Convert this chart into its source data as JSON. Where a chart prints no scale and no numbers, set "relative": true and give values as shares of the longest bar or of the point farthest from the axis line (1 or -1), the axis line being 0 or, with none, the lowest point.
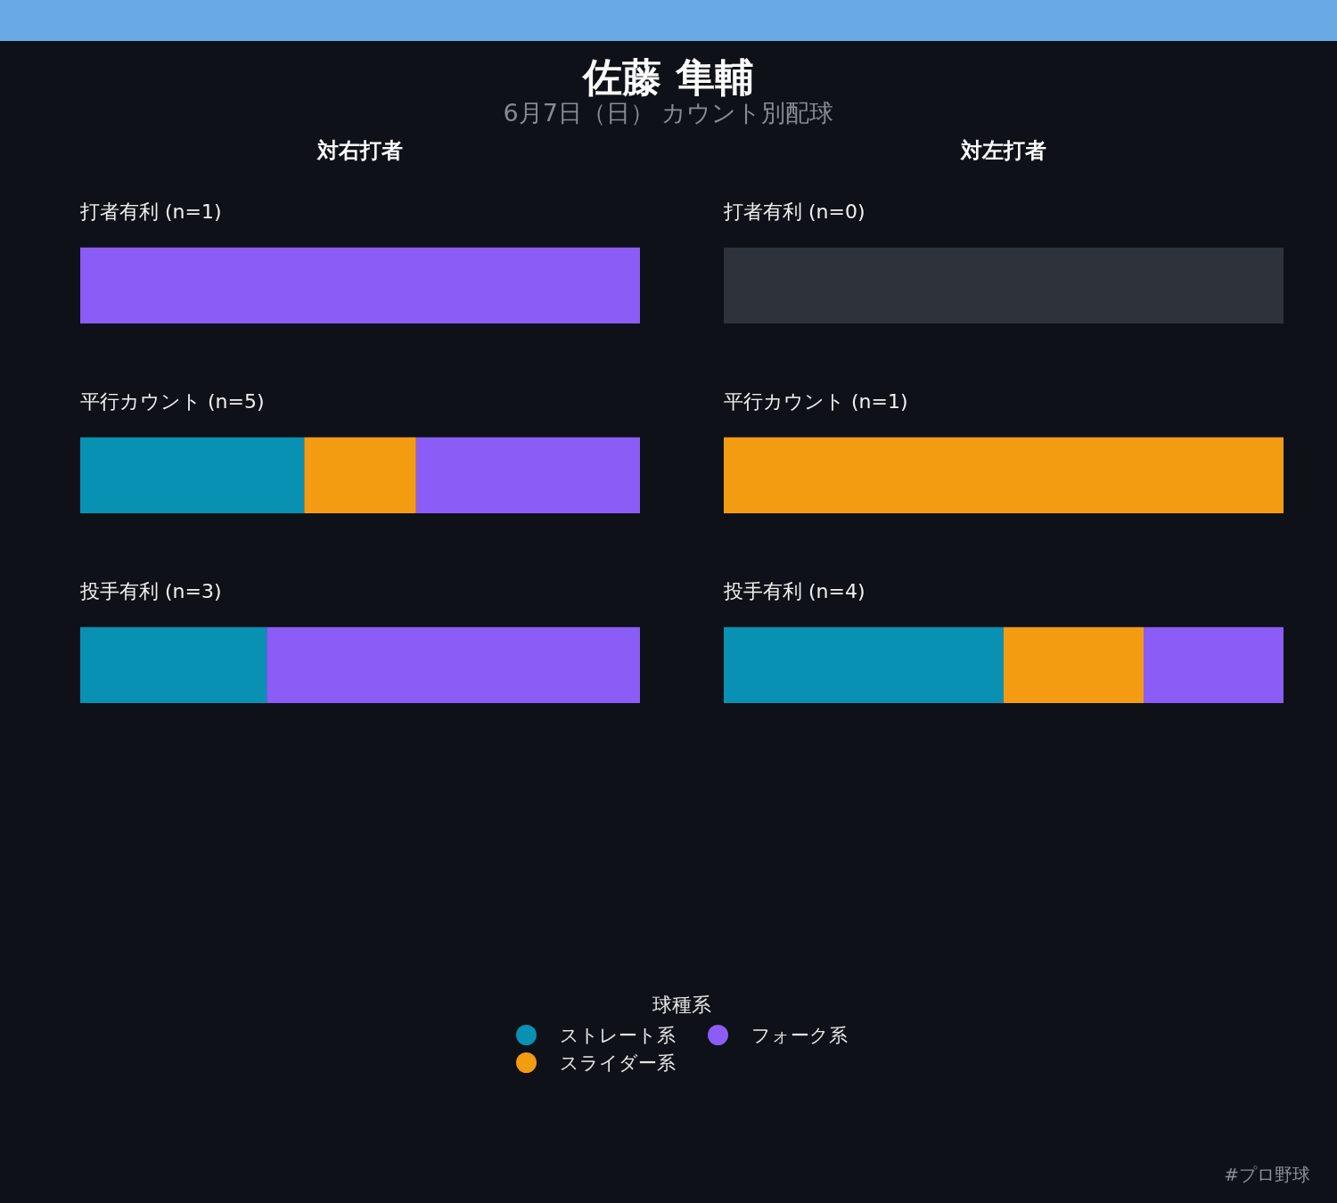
{
  "chart_data": [
    {
      "type": "other",
      "title": "佐藤 隼輔",
      "subtitle": "6月7日（日） カウント別配球",
      "annotations": [
        "#プロ野球"
      ]
    },
    {
      "type": "bar",
      "orientation": "horizontal",
      "stacked": true,
      "relative": true,
      "title": "対右打者",
      "categories": [
        "打者有利 (n=1)",
        "平行カウント (n=5)",
        "投手有利 (n=3)"
      ],
      "series": [
        {
          "name": "ストレート系",
          "color": "#0891b2",
          "values": [
            0,
            0.4,
            0.333
          ]
        },
        {
          "name": "スライダー系",
          "color": "#f39c12",
          "values": [
            0,
            0.2,
            0
          ]
        },
        {
          "name": "フォーク系",
          "color": "#8b5cf6",
          "values": [
            1,
            0.4,
            0.667
          ]
        }
      ],
      "legend": "bottom",
      "legend_title": "球種系"
    },
    {
      "type": "bar",
      "orientation": "horizontal",
      "stacked": true,
      "relative": true,
      "title": "対左打者",
      "categories": [
        "打者有利 (n=0)",
        "平行カウント (n=1)",
        "投手有利 (n=4)"
      ],
      "series": [
        {
          "color": "#0891b2",
          "values": [
            null,
            0,
            0.5
          ]
        },
        {
          "color": "#f39c12",
          "values": [
            null,
            1,
            0.25
          ]
        },
        {
          "color": "#8b5cf6",
          "values": [
            null,
            0,
            0.25
          ]
        },
        {
          "color": "#2e333b",
          "values": [
            1,
            null,
            null
          ]
        }
      ]
    }
  ]
}
